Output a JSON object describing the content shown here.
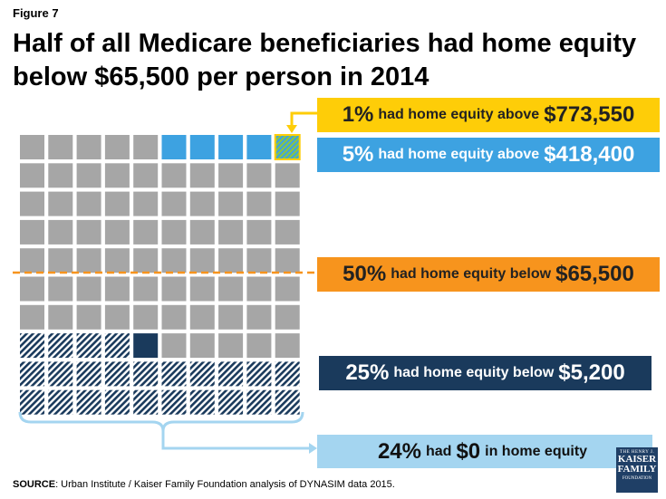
{
  "figure_label": "Figure 7",
  "title": "Half of all Medicare beneficiaries had home equity below $65,500 per person in 2014",
  "callouts": {
    "top1": {
      "pct": "1%",
      "mid": "had home equity above",
      "amount": "$773,550"
    },
    "top5": {
      "pct": "5%",
      "mid": "had home equity above",
      "amount": "$418,400"
    },
    "median": {
      "pct": "50%",
      "mid": "had home equity below",
      "amount": "$65,500"
    },
    "bottom25": {
      "pct": "25%",
      "mid": "had home equity below",
      "amount": "$5,200"
    },
    "zero": {
      "pct": "24%",
      "mid": "had",
      "amount": "$0",
      "suffix": "in home equity"
    }
  },
  "source": {
    "label": "SOURCE",
    "text": ": Urban Institute / Kaiser Family Foundation analysis of DYNASIM data 2015."
  },
  "logo": {
    "line1": "THE HENRY J.",
    "line2": "KAISER",
    "line3": "FAMILY",
    "line4": "FOUNDATION"
  },
  "colors": {
    "gray": "#a6a6a6",
    "blue": "#3da2e1",
    "navy": "#1a3a5c",
    "yellow": "#fecd08",
    "orange": "#f7941d",
    "light_blue": "#a4d5f0",
    "hatch_green": "#8cc63f"
  },
  "chart_data": {
    "type": "waffle",
    "rows": 10,
    "cols": 10,
    "categories": [
      {
        "label": "1% had home equity above $773,550",
        "percent": 1,
        "color": "#8cc63f"
      },
      {
        "label": "5% had home equity above $418,400",
        "percent": 5,
        "color": "#3da2e1"
      },
      {
        "label": "50% had home equity below $65,500",
        "percent": 50,
        "color": "#f7941d"
      },
      {
        "label": "25% had home equity below $5,200",
        "percent": 25,
        "color": "#1a3a5c"
      },
      {
        "label": "24% had $0 in home equity",
        "percent": 24,
        "color": "#1a3a5c"
      }
    ]
  }
}
